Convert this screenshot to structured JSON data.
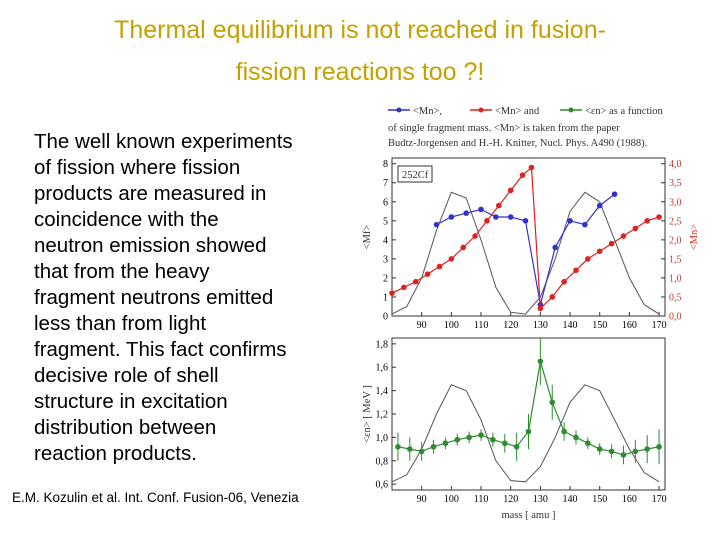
{
  "header": {
    "title_lines": [
      "Thermal equilibrium is not reached in fusion-",
      "fission reactions too ?!"
    ]
  },
  "body": {
    "lines": [
      "The well known experiments",
      "of fission where fission",
      "products are measured in",
      "coincidence with the",
      "neutron emission showed",
      "that from the heavy",
      "fragment neutrons emitted",
      "less than from light",
      "fragment. This fact confirms",
      "decisive role of shell",
      "structure in excitation",
      "distribution between",
      "reaction products."
    ]
  },
  "citation": "E.M. Kozulin et al. Int. Conf. Fusion-06, Venezia",
  "figure": {
    "caption_items": [
      "<Mn>,",
      "<Mn> and",
      "<εn> as a function"
    ],
    "caption_lines": [
      "of single fragment mass. <Mn> is taken from the paper",
      "Budtz-Jorgensen and H.-H. Knitter, Nucl. Phys. A490 (1988)."
    ],
    "top": {
      "type": "line",
      "label": "252Cf",
      "ylabel": "<Mf>",
      "y2label": "<Mn>",
      "xlim": [
        80,
        172
      ],
      "xticks": [
        90,
        100,
        110,
        120,
        130,
        140,
        150,
        160,
        170
      ],
      "ylim": [
        0,
        8.3
      ],
      "yticks": [
        0,
        1,
        2,
        3,
        4,
        5,
        6,
        7,
        8
      ],
      "y2lim": [
        0,
        4.15
      ],
      "y2ticks": [
        {
          "value": 0,
          "label": "0,0"
        },
        {
          "value": 0.5,
          "label": "0,5"
        },
        {
          "value": 1,
          "label": "1,0"
        },
        {
          "value": 1.5,
          "label": "1,5"
        },
        {
          "value": 2,
          "label": "2,0"
        },
        {
          "value": 2.5,
          "label": "2,5"
        },
        {
          "value": 3,
          "label": "3,0"
        },
        {
          "value": 3.5,
          "label": "3,5"
        },
        {
          "value": 4,
          "label": "4,0"
        }
      ],
      "series": [
        {
          "color": "#555555",
          "marker": false,
          "x": [
            80,
            85,
            90,
            95,
            100,
            105,
            110,
            115,
            120,
            125,
            130,
            135,
            140,
            145,
            150,
            155,
            160,
            165,
            170
          ],
          "values": [
            0.1,
            0.5,
            2,
            4.5,
            6.5,
            6.2,
            4,
            1.5,
            0.2,
            0.1,
            1,
            3,
            5.5,
            6.5,
            6,
            4,
            2,
            0.6,
            0.1
          ]
        },
        {
          "color": "#3333cc",
          "marker": true,
          "axis": "y2",
          "x": [
            95,
            100,
            105,
            110,
            115,
            120,
            125,
            130,
            135,
            140,
            145,
            150,
            155
          ],
          "values": [
            2.4,
            2.6,
            2.7,
            2.8,
            2.6,
            2.6,
            2.5,
            0.3,
            1.8,
            2.5,
            2.4,
            2.9,
            3.2
          ]
        },
        {
          "color": "#dd2222",
          "marker": true,
          "axis": "y2",
          "x": [
            80,
            84,
            88,
            92,
            96,
            100,
            104,
            108,
            112,
            116,
            120,
            124,
            127,
            130,
            134,
            138,
            142,
            146,
            150,
            154,
            158,
            162,
            166,
            170
          ],
          "values": [
            0.6,
            0.75,
            0.9,
            1.1,
            1.3,
            1.5,
            1.8,
            2.1,
            2.5,
            2.9,
            3.3,
            3.7,
            3.9,
            0.2,
            0.5,
            0.9,
            1.2,
            1.5,
            1.7,
            1.9,
            2.1,
            2.3,
            2.5,
            2.6
          ]
        }
      ]
    },
    "bottom": {
      "type": "line",
      "ylabel": "<εn> [ MeV ]",
      "xlabel": "mass [ amu ]",
      "xlim": [
        80,
        172
      ],
      "xticks": [
        90,
        100,
        110,
        120,
        130,
        140,
        150,
        160,
        170
      ],
      "ylim": [
        0.55,
        1.85
      ],
      "yticks": [
        {
          "value": 0.6,
          "label": "0,6"
        },
        {
          "value": 0.8,
          "label": "0,8"
        },
        {
          "value": 1,
          "label": "1,0"
        },
        {
          "value": 1.2,
          "label": "1,2"
        },
        {
          "value": 1.4,
          "label": "1,4"
        },
        {
          "value": 1.6,
          "label": "1,6"
        },
        {
          "value": 1.8,
          "label": "1,8"
        }
      ],
      "series": [
        {
          "color": "#555555",
          "marker": false,
          "x": [
            80,
            85,
            90,
            95,
            100,
            105,
            110,
            115,
            120,
            125,
            130,
            135,
            140,
            145,
            150,
            155,
            160,
            165,
            170
          ],
          "values": [
            0.62,
            0.68,
            0.9,
            1.2,
            1.45,
            1.4,
            1.15,
            0.8,
            0.63,
            0.62,
            0.75,
            1.0,
            1.3,
            1.45,
            1.4,
            1.15,
            0.9,
            0.7,
            0.62
          ]
        },
        {
          "color": "#2e8b2e",
          "marker": true,
          "x": [
            82,
            86,
            90,
            94,
            98,
            102,
            106,
            110,
            114,
            118,
            122,
            126,
            130,
            134,
            138,
            142,
            146,
            150,
            154,
            158,
            162,
            166,
            170
          ],
          "values": [
            0.92,
            0.9,
            0.88,
            0.92,
            0.95,
            0.98,
            1.0,
            1.02,
            0.98,
            0.95,
            0.92,
            1.05,
            1.65,
            1.3,
            1.05,
            1.0,
            0.95,
            0.9,
            0.88,
            0.85,
            0.88,
            0.9,
            0.92
          ],
          "errors": [
            0.12,
            0.1,
            0.08,
            0.06,
            0.05,
            0.05,
            0.05,
            0.05,
            0.06,
            0.08,
            0.12,
            0.15,
            0.2,
            0.15,
            0.08,
            0.06,
            0.05,
            0.05,
            0.06,
            0.08,
            0.1,
            0.12,
            0.15
          ]
        }
      ]
    }
  }
}
